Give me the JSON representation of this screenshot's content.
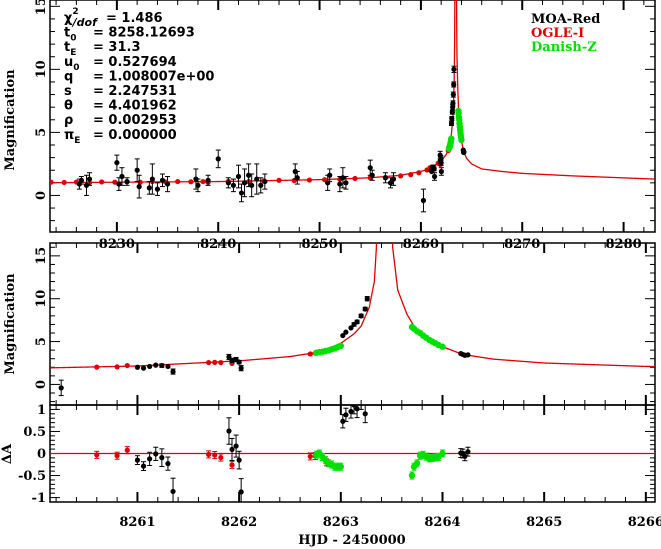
{
  "chart_data": {
    "type": "scatter",
    "title": "",
    "xlabel": "HJD - 2450000",
    "ylabel": "Magnification",
    "residual_ylabel": "ΔA",
    "colors": {
      "MOA-Red": "#000000",
      "OGLE-I": "#e00000",
      "Danish-Z": "#00e000",
      "model": "#e00000"
    },
    "legend": {
      "placement": "top-right",
      "entries": [
        "MOA-Red",
        "OGLE-I",
        "Danish-Z"
      ]
    },
    "parameters": [
      {
        "symbol": "χ",
        "sup": "2",
        "sub": "/dof",
        "value": "= 1.486"
      },
      {
        "symbol": "t",
        "sup": "",
        "sub": "0",
        "value": "= 8258.12693"
      },
      {
        "symbol": "t",
        "sup": "",
        "sub": "E",
        "value": "= 31.3"
      },
      {
        "symbol": "u",
        "sup": "",
        "sub": "0",
        "value": "= 0.527694"
      },
      {
        "symbol": "q",
        "sup": "",
        "sub": "",
        "value": "= 1.008007e+00"
      },
      {
        "symbol": "s",
        "sup": "",
        "sub": "",
        "value": "= 2.247531"
      },
      {
        "symbol": "θ",
        "sup": "",
        "sub": "",
        "value": "= 4.401962"
      },
      {
        "symbol": "ρ",
        "sup": "",
        "sub": "",
        "value": "= 0.002953"
      },
      {
        "symbol": "π",
        "sup": "",
        "sub": "E",
        "value": "= 0.000000"
      }
    ],
    "panels": {
      "overview": {
        "xlim": [
          8223.4,
          8283.1
        ],
        "ylim": [
          -2.9,
          15.5
        ],
        "xticks": [
          "8230",
          "8240",
          "8250",
          "8260",
          "8270",
          "8280"
        ],
        "yticks": [
          "0",
          "5",
          "10",
          "15"
        ]
      },
      "zoom": {
        "xlim": [
          8260.14,
          8266.09
        ],
        "ylim": [
          -2.4,
          16.5
        ],
        "yticks": [
          "0",
          "5",
          "10",
          "15"
        ]
      },
      "residual": {
        "xlim": [
          8260.14,
          8266.09
        ],
        "ylim": [
          -1.1,
          1.1
        ],
        "xticks": [
          "8261",
          "8262",
          "8263",
          "8264",
          "8265",
          "8266"
        ],
        "yticks": [
          "-1",
          "-0.5",
          "0",
          "0.5",
          "1"
        ]
      }
    },
    "model": [
      [
        8222,
        1.0
      ],
      [
        8230,
        1.05
      ],
      [
        8240,
        1.1
      ],
      [
        8250,
        1.25
      ],
      [
        8255,
        1.4
      ],
      [
        8258,
        1.6
      ],
      [
        8260,
        1.9
      ],
      [
        8261,
        2.15
      ],
      [
        8262,
        2.75
      ],
      [
        8262.5,
        3.25
      ],
      [
        8262.8,
        3.8
      ],
      [
        8263.0,
        4.8
      ],
      [
        8263.13,
        5.9
      ],
      [
        8263.2,
        6.8
      ],
      [
        8263.28,
        9
      ],
      [
        8263.33,
        12
      ],
      [
        8263.35,
        16
      ],
      [
        8263.4,
        40
      ],
      [
        8263.46,
        40
      ],
      [
        8263.51,
        16
      ],
      [
        8263.56,
        11
      ],
      [
        8263.65,
        8.2
      ],
      [
        8263.72,
        6.8
      ],
      [
        8263.8,
        5.8
      ],
      [
        8264.0,
        4.4
      ],
      [
        8264.2,
        3.5
      ],
      [
        8264.5,
        2.95
      ],
      [
        8265,
        2.5
      ],
      [
        8266,
        2.1
      ],
      [
        8268,
        1.9
      ],
      [
        8270,
        1.75
      ],
      [
        8275,
        1.55
      ],
      [
        8283,
        1.3
      ]
    ],
    "series": [
      {
        "name": "OGLE-I",
        "points": [
          [
            8223.5,
            1.05,
            0.1
          ],
          [
            8224.8,
            1.03,
            0.1
          ],
          [
            8226.0,
            1.06,
            0.1
          ],
          [
            8227.3,
            1.02,
            0.1
          ],
          [
            8228.5,
            1.07,
            0.1
          ],
          [
            8229.8,
            1.05,
            0.1
          ],
          [
            8231.0,
            1.08,
            0.1
          ],
          [
            8232.3,
            1.05,
            0.1
          ],
          [
            8233.5,
            1.1,
            0.1
          ],
          [
            8234.8,
            1.07,
            0.1
          ],
          [
            8236.0,
            1.1,
            0.1
          ],
          [
            8237.3,
            1.08,
            0.1
          ],
          [
            8238.5,
            1.1,
            0.1
          ],
          [
            8239.0,
            1.04,
            0.1
          ],
          [
            8241.0,
            1.12,
            0.1
          ],
          [
            8243.0,
            1.1,
            0.1
          ],
          [
            8244.5,
            1.15,
            0.1
          ],
          [
            8246.0,
            1.2,
            0.1
          ],
          [
            8247.5,
            1.18,
            0.1
          ],
          [
            8249.0,
            1.22,
            0.1
          ],
          [
            8250.5,
            1.25,
            0.1
          ],
          [
            8252.0,
            1.28,
            0.1
          ],
          [
            8253.5,
            1.35,
            0.1
          ],
          [
            8255.0,
            1.4,
            0.1
          ],
          [
            8256.5,
            1.42,
            0.1
          ],
          [
            8258.0,
            1.55,
            0.1
          ],
          [
            8259.0,
            1.65,
            0.1
          ],
          [
            8259.8,
            1.8,
            0.1
          ],
          [
            8260.6,
            2.02,
            0.08
          ],
          [
            8260.8,
            2.05,
            0.08
          ],
          [
            8260.9,
            2.2,
            0.08
          ],
          [
            8261.7,
            2.55,
            0.08
          ],
          [
            8261.76,
            2.57,
            0.08
          ],
          [
            8261.82,
            2.55,
            0.08
          ],
          [
            8261.93,
            2.45,
            0.08
          ],
          [
            8262.7,
            3.55,
            0.08
          ],
          [
            8262.75,
            3.65,
            0.08
          ],
          [
            8262.86,
            3.9,
            0.08
          ]
        ]
      },
      {
        "name": "MOA-Red",
        "points": [
          [
            8226.3,
            0.9,
            0.4
          ],
          [
            8226.5,
            1.2,
            0.3
          ],
          [
            8227.0,
            0.8,
            0.8
          ],
          [
            8227.3,
            1.3,
            0.5
          ],
          [
            8230.0,
            2.6,
            0.6
          ],
          [
            8230.2,
            0.9,
            0.5
          ],
          [
            8230.5,
            1.5,
            0.7
          ],
          [
            8231.0,
            1.1,
            0.3
          ],
          [
            8232.0,
            2.0,
            0.9
          ],
          [
            8232.2,
            0.7,
            0.9
          ],
          [
            8233.2,
            0.6,
            0.5
          ],
          [
            8233.5,
            1.3,
            1.2
          ],
          [
            8234.0,
            0.5,
            0.5
          ],
          [
            8234.5,
            1.2,
            0.5
          ],
          [
            8235.0,
            0.9,
            0.6
          ],
          [
            8237.8,
            1.3,
            0.8
          ],
          [
            8238.0,
            0.8,
            0.5
          ],
          [
            8239.0,
            1.2,
            0.4
          ],
          [
            8240.0,
            2.9,
            0.7
          ],
          [
            8241.0,
            1.0,
            0.4
          ],
          [
            8241.5,
            0.8,
            0.5
          ],
          [
            8242.0,
            1.5,
            0.9
          ],
          [
            8242.3,
            0.2,
            0.7
          ],
          [
            8242.6,
            1.0,
            1.1
          ],
          [
            8243.0,
            1.6,
            0.9
          ],
          [
            8243.3,
            0.8,
            0.9
          ],
          [
            8243.8,
            1.3,
            1.2
          ],
          [
            8244.2,
            0.8,
            0.6
          ],
          [
            8244.6,
            1.1,
            0.6
          ],
          [
            8247.6,
            1.9,
            0.6
          ],
          [
            8247.8,
            1.4,
            0.5
          ],
          [
            8250.8,
            1.0,
            0.6
          ],
          [
            8251.0,
            1.6,
            0.5
          ],
          [
            8252.0,
            0.9,
            0.6
          ],
          [
            8252.3,
            1.4,
            0.8
          ],
          [
            8252.6,
            1.0,
            0.5
          ],
          [
            8255.0,
            2.2,
            0.6
          ],
          [
            8255.2,
            1.6,
            0.4
          ],
          [
            8256.5,
            1.4,
            0.4
          ],
          [
            8257.0,
            1.0,
            0.4
          ],
          [
            8257.3,
            1.3,
            0.5
          ],
          [
            8260.25,
            -0.4,
            0.9
          ],
          [
            8261.0,
            2.0,
            0.1
          ],
          [
            8261.06,
            1.9,
            0.1
          ],
          [
            8261.12,
            2.1,
            0.15
          ],
          [
            8261.18,
            2.25,
            0.15
          ],
          [
            8261.24,
            2.2,
            0.2
          ],
          [
            8261.3,
            2.1,
            0.15
          ],
          [
            8261.35,
            1.5,
            0.3
          ],
          [
            8261.9,
            3.2,
            0.3
          ],
          [
            8261.93,
            2.8,
            0.25
          ],
          [
            8261.97,
            2.9,
            0.25
          ],
          [
            8262.0,
            2.6,
            0.2
          ],
          [
            8262.02,
            1.9,
            0.3
          ],
          [
            8263.02,
            5.7,
            0.15
          ],
          [
            8263.05,
            6.1,
            0.15
          ],
          [
            8263.1,
            6.6,
            0.15
          ],
          [
            8263.13,
            7.0,
            0.2
          ],
          [
            8263.16,
            7.3,
            0.2
          ],
          [
            8263.2,
            8.0,
            0.2
          ],
          [
            8263.24,
            8.8,
            0.2
          ],
          [
            8263.26,
            10.0,
            0.25
          ],
          [
            8264.18,
            3.6,
            0.1
          ],
          [
            8264.2,
            3.5,
            0.1
          ],
          [
            8264.22,
            3.4,
            0.1
          ],
          [
            8264.25,
            3.45,
            0.1
          ]
        ]
      },
      {
        "name": "Danish-Z",
        "points": [
          [
            8262.76,
            3.7,
            0.08
          ],
          [
            8262.79,
            3.78,
            0.08
          ],
          [
            8262.82,
            3.82,
            0.08
          ],
          [
            8262.85,
            3.9,
            0.08
          ],
          [
            8262.88,
            3.98,
            0.08
          ],
          [
            8262.91,
            4.1,
            0.08
          ],
          [
            8262.94,
            4.2,
            0.08
          ],
          [
            8262.97,
            4.35,
            0.08
          ],
          [
            8263.0,
            4.5,
            0.08
          ],
          [
            8263.7,
            6.7,
            0.08
          ],
          [
            8263.72,
            6.5,
            0.08
          ],
          [
            8263.75,
            6.2,
            0.08
          ],
          [
            8263.78,
            6.0,
            0.08
          ],
          [
            8263.81,
            5.7,
            0.08
          ],
          [
            8263.84,
            5.45,
            0.08
          ],
          [
            8263.87,
            5.2,
            0.08
          ],
          [
            8263.9,
            5.0,
            0.08
          ],
          [
            8263.93,
            4.8,
            0.08
          ],
          [
            8263.96,
            4.6,
            0.08
          ],
          [
            8264.0,
            4.4,
            0.08
          ]
        ]
      }
    ]
  }
}
